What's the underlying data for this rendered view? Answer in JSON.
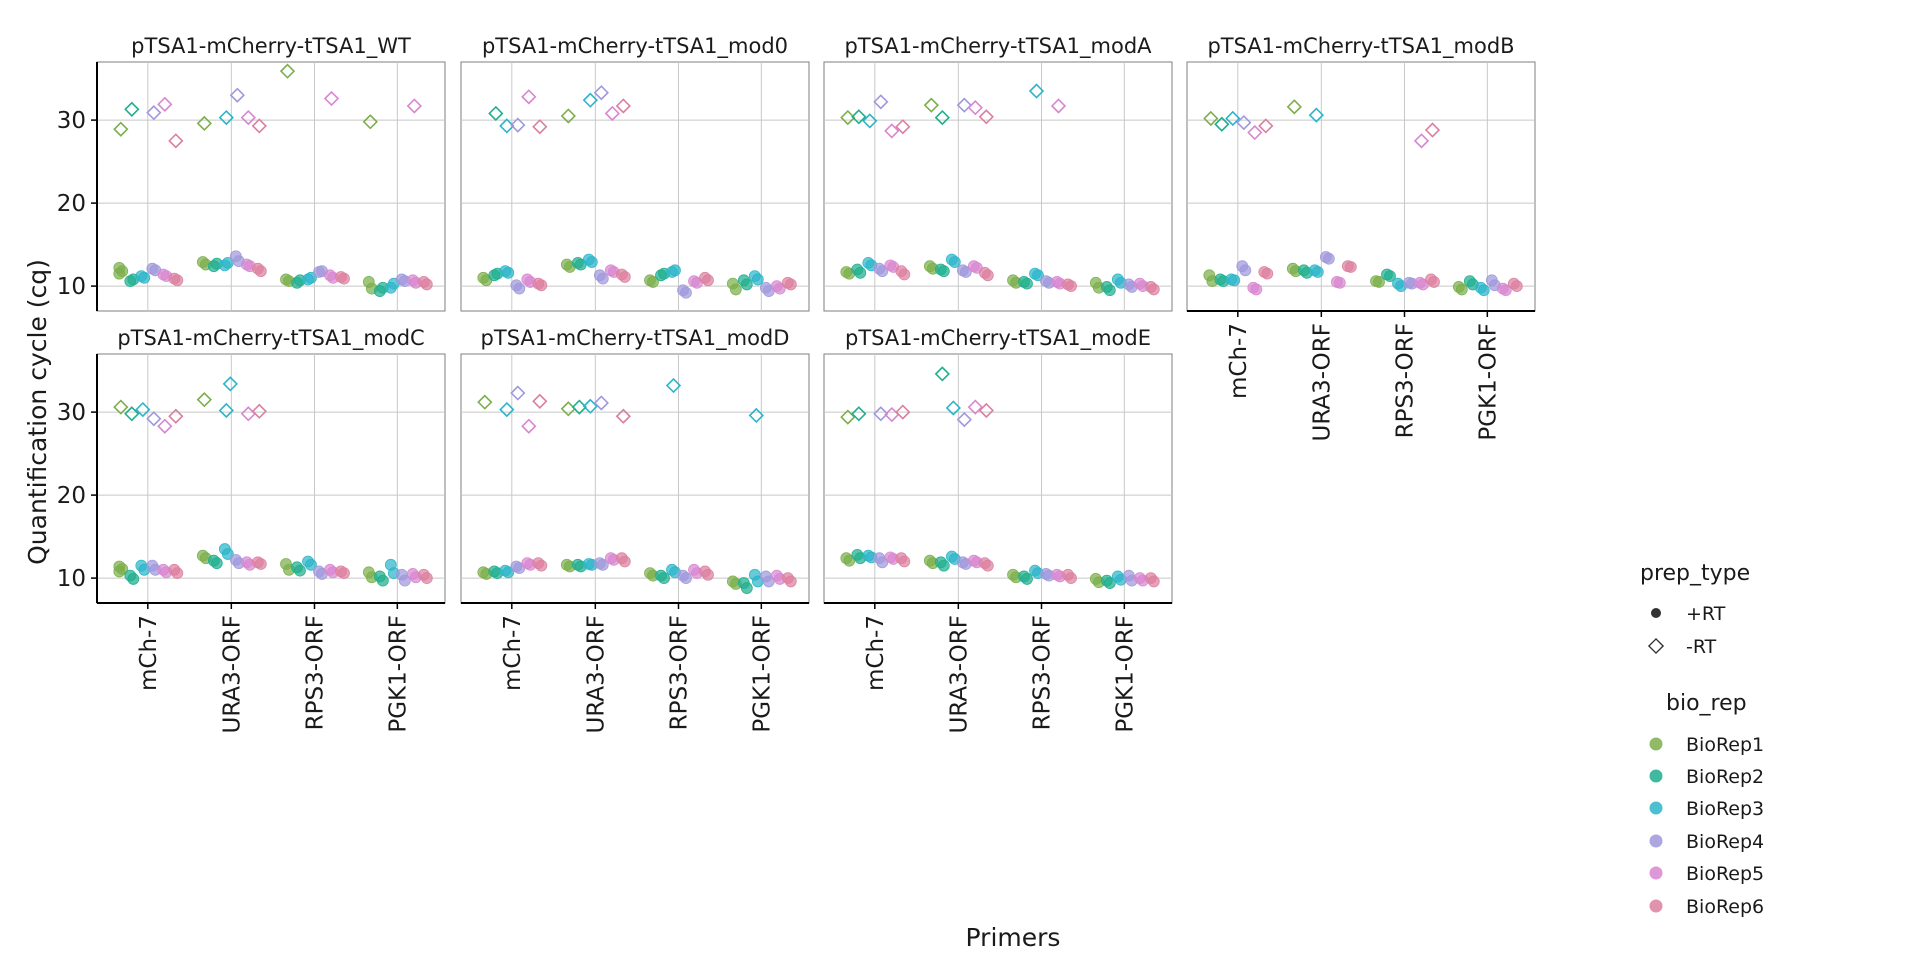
{
  "chart_data": {
    "type": "scatter",
    "xlabel": "Primers",
    "ylabel": "Quantification cycle (cq)",
    "categories": [
      "mCh-7",
      "URA3-ORF",
      "RPS3-ORF",
      "PGK1-ORF"
    ],
    "yticks": [
      10,
      20,
      30
    ],
    "ylim": [
      7,
      37
    ],
    "grid": true,
    "legend_position": "right",
    "legends": {
      "prep_type": {
        "title": "prep_type",
        "entries": [
          "+RT",
          "-RT"
        ],
        "shapes": [
          "circle",
          "diamond"
        ]
      },
      "bio_rep": {
        "title": "bio_rep",
        "entries": [
          "BioRep1",
          "BioRep2",
          "BioRep3",
          "BioRep4",
          "BioRep5",
          "BioRep6"
        ],
        "colors": [
          "#7cae4b",
          "#1fae8e",
          "#2bb5c9",
          "#9f98dc",
          "#d886d0",
          "#dc7f9f"
        ]
      }
    },
    "panels": [
      {
        "title": "pTSA1-mCherry-tTSA1_WT",
        "plus_rt": [
          [
            [
              12.2,
              11.8,
              11.5
            ],
            [
              10.6,
              10.8
            ],
            [
              11.2,
              11.0
            ],
            [
              12.1,
              11.9
            ],
            [
              11.4,
              11.2
            ],
            [
              10.9,
              10.7
            ]
          ],
          [
            [
              12.9,
              12.6
            ],
            [
              12.4,
              12.7
            ],
            [
              12.5,
              12.8
            ],
            [
              13.6,
              13.0
            ],
            [
              12.6,
              12.4
            ],
            [
              12.1,
              11.8
            ]
          ],
          [
            [
              10.8,
              10.6
            ],
            [
              10.4,
              10.7
            ],
            [
              10.8,
              11.0
            ],
            [
              11.7,
              11.8
            ],
            [
              11.3,
              11.0
            ],
            [
              11.1,
              10.9
            ]
          ],
          [
            [
              10.5,
              9.7
            ],
            [
              9.4,
              9.8
            ],
            [
              9.8,
              10.3
            ],
            [
              10.8,
              10.6
            ],
            [
              10.7,
              10.4
            ],
            [
              10.5,
              10.2
            ]
          ]
        ],
        "minus_rt": [
          [
            [
              28.9
            ],
            [
              31.3
            ],
            [],
            [
              30.9
            ],
            [
              31.9
            ],
            [
              27.5
            ]
          ],
          [
            [
              29.6
            ],
            [],
            [
              30.3
            ],
            [
              33.0
            ],
            [
              30.3
            ],
            [
              29.3
            ]
          ],
          [
            [
              35.9
            ],
            [],
            [],
            [],
            [
              32.6
            ],
            []
          ],
          [
            [
              29.8
            ],
            [],
            [],
            [],
            [
              31.7
            ],
            []
          ]
        ]
      },
      {
        "title": "pTSA1-mCherry-tTSA1_mod0",
        "plus_rt": [
          [
            [
              11.0,
              10.7
            ],
            [
              11.3,
              11.5
            ],
            [
              11.8,
              11.6
            ],
            [
              10.1,
              9.7
            ],
            [
              10.8,
              10.5
            ],
            [
              10.3,
              10.1
            ]
          ],
          [
            [
              12.6,
              12.3
            ],
            [
              12.8,
              12.6
            ],
            [
              13.2,
              12.9
            ],
            [
              11.3,
              10.9
            ],
            [
              11.9,
              11.7
            ],
            [
              11.4,
              11.1
            ]
          ],
          [
            [
              10.7,
              10.5
            ],
            [
              11.3,
              11.5
            ],
            [
              11.7,
              11.9
            ],
            [
              9.5,
              9.2
            ],
            [
              10.6,
              10.4
            ],
            [
              11.0,
              10.7
            ]
          ],
          [
            [
              10.3,
              9.6
            ],
            [
              10.7,
              10.2
            ],
            [
              11.2,
              10.8
            ],
            [
              9.8,
              9.4
            ],
            [
              10.0,
              9.7
            ],
            [
              10.4,
              10.2
            ]
          ]
        ],
        "minus_rt": [
          [
            [],
            [
              30.8
            ],
            [
              29.3
            ],
            [
              29.4
            ],
            [
              32.8
            ],
            [
              29.2
            ]
          ],
          [
            [
              30.5
            ],
            [],
            [
              32.4
            ],
            [
              33.3
            ],
            [
              30.8
            ],
            [
              31.7
            ]
          ],
          [
            [],
            [],
            [],
            [],
            [],
            []
          ],
          [
            [],
            [],
            [],
            [],
            [],
            []
          ]
        ]
      },
      {
        "title": "pTSA1-mCherry-tTSA1_modA",
        "plus_rt": [
          [
            [
              11.7,
              11.5
            ],
            [
              12.0,
              11.6
            ],
            [
              12.8,
              12.5
            ],
            [
              12.1,
              11.8
            ],
            [
              12.5,
              12.3
            ],
            [
              11.8,
              11.4
            ]
          ],
          [
            [
              12.4,
              12.1
            ],
            [
              12.0,
              11.8
            ],
            [
              13.2,
              12.9
            ],
            [
              11.9,
              11.7
            ],
            [
              12.4,
              12.2
            ],
            [
              11.6,
              11.3
            ]
          ],
          [
            [
              10.7,
              10.4
            ],
            [
              10.5,
              10.3
            ],
            [
              11.5,
              11.3
            ],
            [
              10.6,
              10.4
            ],
            [
              10.5,
              10.3
            ],
            [
              10.2,
              10.0
            ]
          ],
          [
            [
              10.4,
              9.8
            ],
            [
              9.9,
              9.5
            ],
            [
              10.8,
              10.4
            ],
            [
              10.2,
              9.9
            ],
            [
              10.3,
              10.0
            ],
            [
              9.9,
              9.6
            ]
          ]
        ],
        "minus_rt": [
          [
            [
              30.3
            ],
            [
              30.4
            ],
            [
              29.9
            ],
            [
              32.2
            ],
            [
              28.7
            ],
            [
              29.2
            ]
          ],
          [
            [
              31.8
            ],
            [
              30.3
            ],
            [],
            [
              31.8
            ],
            [
              31.5
            ],
            [
              30.4
            ]
          ],
          [
            [],
            [],
            [
              33.5
            ],
            [],
            [
              31.7
            ],
            []
          ],
          [
            [],
            [],
            [],
            [],
            [],
            []
          ]
        ]
      },
      {
        "title": "pTSA1-mCherry-tTSA1_modB",
        "plus_rt": [
          [
            [
              11.3,
              10.6
            ],
            [
              10.8,
              10.6
            ],
            [
              10.8,
              10.7
            ],
            [
              12.4,
              11.9
            ],
            [
              9.8,
              9.6
            ],
            [
              11.7,
              11.5
            ]
          ],
          [
            [
              12.1,
              11.8
            ],
            [
              11.9,
              11.6
            ],
            [
              11.9,
              11.7
            ],
            [
              13.5,
              13.3
            ],
            [
              10.5,
              10.4
            ],
            [
              12.4,
              12.3
            ]
          ],
          [
            [
              10.6,
              10.5
            ],
            [
              11.4,
              11.2
            ],
            [
              10.3,
              10.0
            ],
            [
              10.4,
              10.3
            ],
            [
              10.4,
              10.2
            ],
            [
              10.8,
              10.5
            ]
          ],
          [
            [
              9.9,
              9.6
            ],
            [
              10.6,
              10.2
            ],
            [
              9.8,
              9.5
            ],
            [
              10.7,
              10.1
            ],
            [
              9.7,
              9.5
            ],
            [
              10.3,
              10.0
            ]
          ]
        ],
        "minus_rt": [
          [
            [
              30.2
            ],
            [
              29.5
            ],
            [
              30.2
            ],
            [
              29.7
            ],
            [
              28.5
            ],
            [
              29.3
            ]
          ],
          [
            [
              31.6
            ],
            [],
            [
              30.6
            ],
            [],
            [],
            []
          ],
          [
            [],
            [],
            [],
            [],
            [
              27.5
            ],
            [
              28.8
            ]
          ],
          [
            [],
            [],
            [],
            [],
            [],
            []
          ]
        ]
      },
      {
        "title": "pTSA1-mCherry-tTSA1_modC",
        "plus_rt": [
          [
            [
              11.4,
              11.1,
              10.8
            ],
            [
              10.3,
              9.9
            ],
            [
              11.5,
              11.0
            ],
            [
              11.5,
              11.0
            ],
            [
              11.0,
              10.7
            ],
            [
              11.0,
              10.6
            ]
          ],
          [
            [
              12.7,
              12.4
            ],
            [
              12.1,
              11.8
            ],
            [
              13.5,
              12.9
            ],
            [
              12.2,
              11.8
            ],
            [
              11.9,
              11.6
            ],
            [
              11.9,
              11.7
            ]
          ],
          [
            [
              11.7,
              11.0
            ],
            [
              11.3,
              10.9
            ],
            [
              12.0,
              11.6
            ],
            [
              10.8,
              10.5
            ],
            [
              11.0,
              10.7
            ],
            [
              10.8,
              10.6
            ]
          ],
          [
            [
              10.7,
              10.1
            ],
            [
              10.2,
              9.7
            ],
            [
              11.6,
              10.6
            ],
            [
              10.4,
              9.7
            ],
            [
              10.5,
              10.1
            ],
            [
              10.4,
              10.0
            ]
          ]
        ],
        "minus_rt": [
          [
            [
              30.6
            ],
            [
              29.8
            ],
            [
              30.3
            ],
            [
              29.2
            ],
            [
              28.3
            ],
            [
              29.5
            ]
          ],
          [
            [
              31.5
            ],
            [],
            [
              30.2
            ],
            [],
            [
              29.8
            ],
            [
              30.1
            ]
          ],
          [
            [],
            [],
            [],
            [],
            [],
            []
          ],
          [
            [],
            [],
            [],
            [],
            [],
            []
          ]
        ],
        "minus_rt_extra": [
          [
            1,
            2,
            33.4
          ]
        ]
      },
      {
        "title": "pTSA1-mCherry-tTSA1_modD",
        "plus_rt": [
          [
            [
              10.7,
              10.5
            ],
            [
              10.8,
              10.6
            ],
            [
              10.9,
              10.7
            ],
            [
              11.4,
              11.2
            ],
            [
              11.8,
              11.6
            ],
            [
              11.8,
              11.5
            ]
          ],
          [
            [
              11.6,
              11.4
            ],
            [
              11.6,
              11.4
            ],
            [
              11.7,
              11.6
            ],
            [
              11.8,
              11.6
            ],
            [
              12.4,
              12.2
            ],
            [
              12.4,
              12.0
            ]
          ],
          [
            [
              10.6,
              10.3
            ],
            [
              10.3,
              10.0
            ],
            [
              11.0,
              10.7
            ],
            [
              10.3,
              10.0
            ],
            [
              11.0,
              10.6
            ],
            [
              10.8,
              10.4
            ]
          ],
          [
            [
              9.6,
              9.3
            ],
            [
              9.4,
              8.8
            ],
            [
              10.4,
              9.6
            ],
            [
              10.2,
              9.6
            ],
            [
              10.3,
              9.9
            ],
            [
              10.0,
              9.6
            ]
          ]
        ],
        "minus_rt": [
          [
            [
              31.2
            ],
            [],
            [
              30.3
            ],
            [
              32.3
            ],
            [
              28.3
            ],
            [
              31.3
            ]
          ],
          [
            [
              30.4
            ],
            [
              30.6
            ],
            [
              30.7
            ],
            [
              31.1
            ],
            [],
            [
              29.5
            ]
          ],
          [
            [],
            [],
            [
              33.2
            ],
            [],
            [],
            []
          ],
          [
            [],
            [],
            [
              29.6
            ],
            [],
            [],
            []
          ]
        ]
      },
      {
        "title": "pTSA1-mCherry-tTSA1_modE",
        "plus_rt": [
          [
            [
              12.4,
              12.1
            ],
            [
              12.8,
              12.4
            ],
            [
              12.7,
              12.5
            ],
            [
              12.4,
              11.9
            ],
            [
              12.5,
              12.3
            ],
            [
              12.4,
              12.0
            ]
          ],
          [
            [
              12.1,
              11.8
            ],
            [
              11.9,
              11.5
            ],
            [
              12.6,
              12.3
            ],
            [
              11.9,
              11.7
            ],
            [
              12.1,
              11.9
            ],
            [
              11.8,
              11.5
            ]
          ],
          [
            [
              10.4,
              10.1
            ],
            [
              10.2,
              9.9
            ],
            [
              10.9,
              10.6
            ],
            [
              10.5,
              10.3
            ],
            [
              10.4,
              10.2
            ],
            [
              10.4,
              10.0
            ]
          ],
          [
            [
              9.9,
              9.5
            ],
            [
              9.7,
              9.4
            ],
            [
              10.2,
              9.8
            ],
            [
              10.3,
              9.7
            ],
            [
              10.0,
              9.7
            ],
            [
              10.0,
              9.6
            ]
          ]
        ],
        "minus_rt": [
          [
            [
              29.4
            ],
            [
              29.8
            ],
            [],
            [
              29.8
            ],
            [
              29.7
            ],
            [
              30.0
            ]
          ],
          [
            [],
            [
              34.6
            ],
            [
              30.5
            ],
            [
              29.1
            ],
            [
              30.6
            ],
            [
              30.2
            ]
          ],
          [
            [],
            [],
            [],
            [],
            [],
            []
          ],
          [
            [],
            [],
            [],
            [],
            [],
            []
          ]
        ]
      }
    ]
  }
}
